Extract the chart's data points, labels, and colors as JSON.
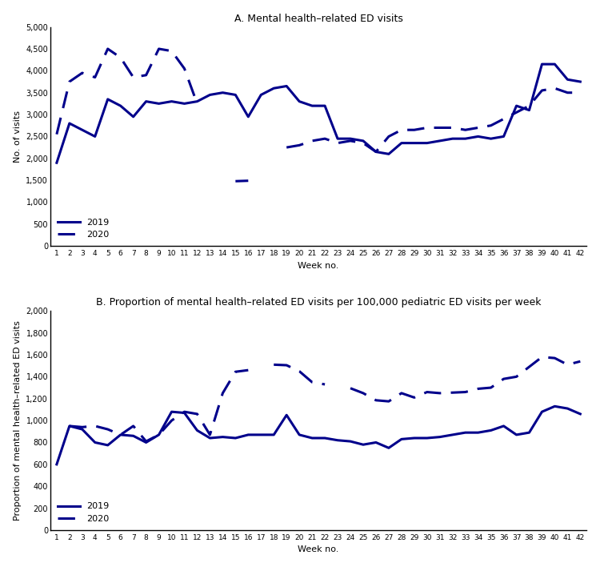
{
  "weeks": [
    1,
    2,
    3,
    4,
    5,
    6,
    7,
    8,
    9,
    10,
    11,
    12,
    13,
    14,
    15,
    16,
    17,
    18,
    19,
    20,
    21,
    22,
    23,
    24,
    25,
    26,
    27,
    28,
    29,
    30,
    31,
    32,
    33,
    34,
    35,
    36,
    37,
    38,
    39,
    40,
    41,
    42
  ],
  "chart_a": {
    "title": "A. Mental health–related ED visits",
    "ylabel": "No. of visits",
    "xlabel": "Week no.",
    "ylim": [
      0,
      5000
    ],
    "yticks": [
      0,
      500,
      1000,
      1500,
      2000,
      2500,
      3000,
      3500,
      4000,
      4500,
      5000
    ],
    "ytick_labels": [
      "0",
      "500",
      "1,000",
      "1,500",
      "2,000",
      "2,500",
      "3,000",
      "3,500",
      "4,000",
      "4,500",
      "5,000"
    ],
    "data_2019": [
      1900,
      2800,
      2650,
      2500,
      3350,
      3200,
      2950,
      3300,
      3250,
      3300,
      3250,
      3300,
      3450,
      3500,
      3450,
      2950,
      3450,
      3600,
      3650,
      3300,
      3200,
      3200,
      2450,
      2450,
      2400,
      2150,
      2100,
      2350,
      2350,
      2350,
      2400,
      2450,
      2450,
      2500,
      2450,
      2500,
      3200,
      3100,
      4150,
      4150,
      3800,
      3750
    ],
    "data_2020": [
      2550,
      3750,
      3950,
      3850,
      4500,
      4300,
      3850,
      3900,
      4500,
      4450,
      4050,
      3250,
      null,
      null,
      1480,
      1490,
      null,
      null,
      2250,
      2300,
      2400,
      2450,
      2350,
      2400,
      2350,
      2150,
      2500,
      2650,
      2650,
      2700,
      2700,
      2700,
      2650,
      2700,
      2750,
      2900,
      3050,
      3200,
      3550,
      3600,
      3500,
      3500
    ]
  },
  "chart_b": {
    "title": "B. Proportion of mental health–related ED visits per 100,000 pediatric ED visits per week",
    "ylabel": "Proportion of mental health–related ED visits",
    "xlabel": "Week no.",
    "ylim": [
      0,
      2000
    ],
    "yticks": [
      0,
      200,
      400,
      600,
      800,
      1000,
      1200,
      1400,
      1600,
      1800,
      2000
    ],
    "ytick_labels": [
      "0",
      "200",
      "400",
      "600",
      "800",
      "1,000",
      "1,200",
      "1,400",
      "1,600",
      "1,800",
      "2,000"
    ],
    "data_2019": [
      600,
      950,
      920,
      800,
      775,
      870,
      860,
      800,
      870,
      1080,
      1070,
      910,
      840,
      850,
      840,
      870,
      870,
      870,
      1050,
      870,
      840,
      840,
      820,
      810,
      780,
      800,
      750,
      830,
      840,
      840,
      850,
      870,
      890,
      890,
      910,
      950,
      870,
      890,
      1080,
      1130,
      1110,
      1060
    ],
    "data_2020": [
      null,
      950,
      940,
      950,
      920,
      870,
      950,
      810,
      870,
      1000,
      1080,
      1060,
      870,
      1250,
      1445,
      1460,
      null,
      1510,
      1505,
      1450,
      1350,
      1330,
      null,
      1295,
      1250,
      1185,
      1175,
      1250,
      1210,
      1260,
      1250,
      1255,
      1260,
      1290,
      1300,
      1380,
      1400,
      1490,
      1580,
      1570,
      1510,
      1540
    ]
  },
  "line_color": "#00008B",
  "line_width": 2.2,
  "legend_2019": "2019",
  "legend_2020": "2020"
}
